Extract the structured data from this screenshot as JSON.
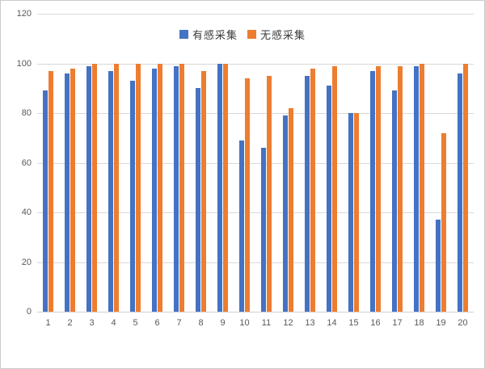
{
  "chart_data": {
    "type": "bar",
    "title": "",
    "categories": [
      "1",
      "2",
      "3",
      "4",
      "5",
      "6",
      "7",
      "8",
      "9",
      "10",
      "11",
      "12",
      "13",
      "14",
      "15",
      "16",
      "17",
      "18",
      "19",
      "20"
    ],
    "series": [
      {
        "name": "有感采集",
        "color": "#4472C4",
        "values": [
          89,
          96,
          99,
          97,
          93,
          98,
          99,
          90,
          100,
          69,
          66,
          79,
          95,
          91,
          80,
          97,
          89,
          99,
          37,
          96
        ]
      },
      {
        "name": "无感采集",
        "color": "#ED7D31",
        "values": [
          97,
          98,
          100,
          100,
          100,
          100,
          100,
          97,
          100,
          94,
          95,
          82,
          98,
          99,
          80,
          99,
          99,
          100,
          72,
          100
        ]
      }
    ],
    "xlabel": "",
    "ylabel": "",
    "ylim": [
      0,
      120
    ],
    "yticks": [
      0,
      20,
      40,
      60,
      80,
      100,
      120
    ],
    "grid": true,
    "legend_position": "top",
    "gridline_color": "#d9d9d9",
    "tick_label_color": "#595959",
    "background_color": "#ffffff"
  }
}
